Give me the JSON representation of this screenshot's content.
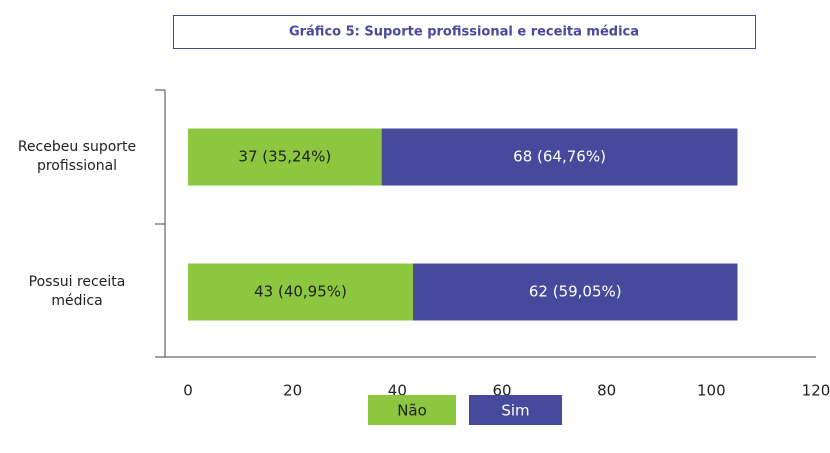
{
  "chart_data": {
    "type": "stacked_barh",
    "title": "Gráfico 5: Suporte profissional e receita médica",
    "categories": [
      "Recebeu suporte profissional",
      "Possui receita médica"
    ],
    "series": [
      {
        "name": "Não",
        "color": "#8dc63f",
        "values": [
          37,
          43
        ],
        "value_labels": [
          "37 (35,24%)",
          "43 (40,95%)"
        ]
      },
      {
        "name": "Sim",
        "color": "#474a9c",
        "values": [
          68,
          62
        ],
        "value_labels": [
          "68 (64,76%)",
          "62 (59,05%)"
        ]
      }
    ],
    "xlim": [
      0,
      120
    ],
    "xticks": [
      0,
      20,
      40,
      60,
      80,
      100,
      120
    ],
    "legend": "bottom"
  }
}
